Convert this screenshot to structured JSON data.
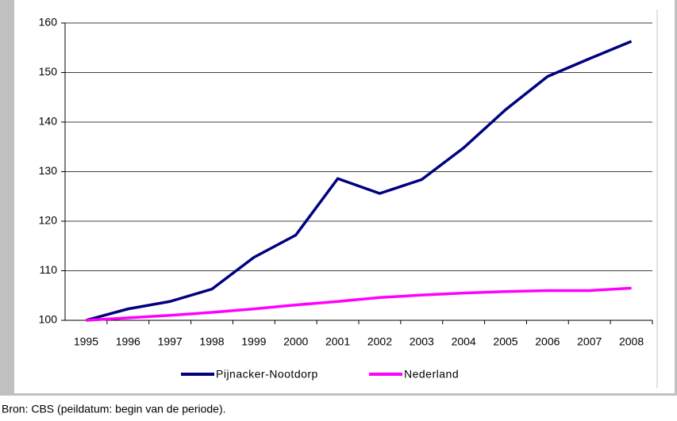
{
  "chart_data": {
    "type": "line",
    "categories": [
      "1995",
      "1996",
      "1997",
      "1998",
      "1999",
      "2000",
      "2001",
      "2002",
      "2003",
      "2004",
      "2005",
      "2006",
      "2007",
      "2008"
    ],
    "series": [
      {
        "name": "Pijnacker-Nootdorp",
        "color": "#000080",
        "values": [
          100,
          102.3,
          103.8,
          106.3,
          112.7,
          117.2,
          128.6,
          125.6,
          128.4,
          134.8,
          142.5,
          149.2,
          152.8,
          156.3
        ]
      },
      {
        "name": "Nederland",
        "color": "#ff00ff",
        "values": [
          100,
          100.5,
          101,
          101.6,
          102.3,
          103.1,
          103.8,
          104.6,
          105.1,
          105.5,
          105.8,
          106,
          106,
          106.5
        ]
      }
    ],
    "ylim": [
      100,
      160
    ],
    "yticks": [
      100,
      110,
      120,
      130,
      140,
      150,
      160
    ],
    "grid": true,
    "source": "Bron: CBS (peildatum: begin van de periode)."
  }
}
